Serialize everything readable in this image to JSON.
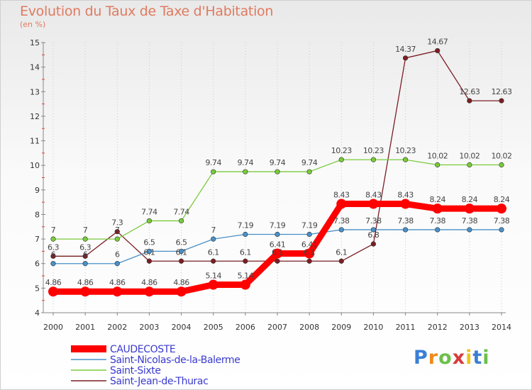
{
  "chart_data": {
    "type": "line",
    "title": "Evolution du Taux de Taxe d'Habitation",
    "subtitle": "(en %)",
    "xlabel": "",
    "ylabel": "",
    "x": [
      "2000",
      "2001",
      "2002",
      "2003",
      "2004",
      "2005",
      "2006",
      "2007",
      "2008",
      "2009",
      "2010",
      "2011",
      "2012",
      "2013",
      "2014"
    ],
    "ylim": [
      4,
      15
    ],
    "yticks": [
      "4",
      "5",
      "6",
      "7",
      "8",
      "9",
      "10",
      "11",
      "12",
      "13",
      "14",
      "15"
    ],
    "grid": "vertical dotted",
    "legend_position": "bottom-left",
    "series": [
      {
        "name": "CAUDECOSTE",
        "color": "#ff0000",
        "values": [
          4.86,
          4.86,
          4.86,
          4.86,
          4.86,
          5.14,
          5.14,
          6.41,
          6.41,
          8.43,
          8.43,
          8.43,
          8.24,
          8.24,
          8.24
        ],
        "labels": [
          "4.86",
          "4.86",
          "4.86",
          "4.86",
          "4.86",
          "5.14",
          "5.14",
          "6.41",
          "6.41",
          "8.43",
          "8.43",
          "8.43",
          "8.24",
          "8.24",
          "8.24"
        ]
      },
      {
        "name": "Saint-Nicolas-de-la-Balerme",
        "color": "#4a90c8",
        "values": [
          6,
          6,
          6,
          6.5,
          6.5,
          7,
          7.19,
          7.19,
          7.19,
          7.38,
          7.38,
          7.38,
          7.38,
          7.38,
          7.38
        ],
        "labels": [
          "6",
          "6",
          "6",
          "6.5",
          "6.5",
          "7",
          "7.19",
          "7.19",
          "7.19",
          "7.38",
          "7.38",
          "7.38",
          "7.38",
          "7.38",
          "7.38"
        ]
      },
      {
        "name": "Saint-Sixte",
        "color": "#7acb3c",
        "values": [
          7,
          7,
          7,
          7.74,
          7.74,
          9.74,
          9.74,
          9.74,
          9.74,
          10.23,
          10.23,
          10.23,
          10.02,
          10.02,
          10.02
        ],
        "labels": [
          "7",
          "7",
          "7",
          "7.74",
          "7.74",
          "9.74",
          "9.74",
          "9.74",
          "9.74",
          "10.23",
          "10.23",
          "10.23",
          "10.02",
          "10.02",
          "10.02"
        ]
      },
      {
        "name": "Saint-Jean-de-Thurac",
        "color": "#7a1e24",
        "values": [
          6.3,
          6.3,
          7.3,
          6.1,
          6.1,
          6.1,
          6.1,
          6.1,
          6.1,
          6.1,
          6.8,
          14.37,
          14.67,
          12.63,
          12.63
        ],
        "labels": [
          "6.3",
          "6.3",
          "7.3",
          "6.1",
          "6.1",
          "6.1",
          "6.1",
          "6.1",
          "6.1",
          "6.1",
          "6.8",
          "14.37",
          "14.67",
          "12.63",
          "12.63"
        ]
      }
    ]
  },
  "logo": {
    "text": "Proxiti",
    "colors": [
      "#3a7fd5",
      "#f08a1c",
      "#6cc04a",
      "#d83a3a",
      "#f0c419",
      "#3a7fd5",
      "#6cc04a"
    ]
  }
}
